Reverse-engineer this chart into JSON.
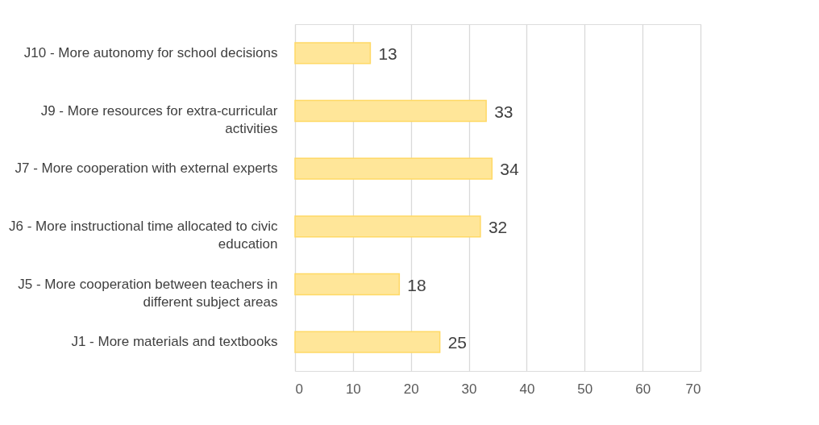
{
  "chart_data": {
    "type": "bar",
    "orientation": "horizontal",
    "categories": [
      "J10 - More autonomy for school decisions",
      "J9 - More resources for extra-curricular activities",
      "J7 - More cooperation with external experts",
      "J6 - More instructional time allocated to civic education",
      "J5 - More cooperation between teachers in different subject areas",
      "J1 - More materials and textbooks"
    ],
    "values": [
      13,
      33,
      34,
      32,
      18,
      25
    ],
    "color": "#ffe699",
    "xlim": [
      0,
      70
    ],
    "xticks": [
      0,
      10,
      20,
      30,
      40,
      50,
      60,
      70
    ],
    "grid": "x",
    "data_labels": true
  }
}
